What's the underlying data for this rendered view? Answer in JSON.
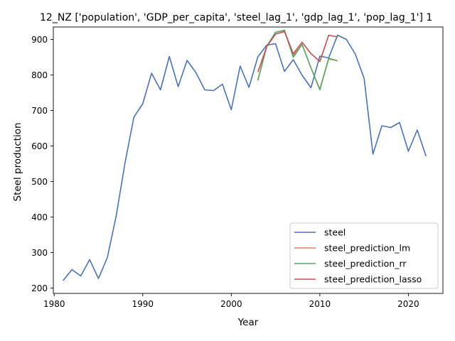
{
  "chart_data": {
    "type": "line",
    "title": "12_NZ ['population', 'GDP_per_capita', 'steel_lag_1', 'gdp_lag_1', 'pop_lag_1'] 1",
    "xlabel": "Year",
    "ylabel": "Steel production",
    "xlim": [
      1979.9,
      2023.9
    ],
    "ylim": [
      185,
      935
    ],
    "xticks": [
      1980,
      1990,
      2000,
      2010,
      2020
    ],
    "yticks": [
      200,
      300,
      400,
      500,
      600,
      700,
      800,
      900
    ],
    "grid": false,
    "legend_position": "lower-right",
    "series": [
      {
        "name": "steel",
        "color": "#4c72b0",
        "x": [
          1981,
          1982,
          1983,
          1984,
          1985,
          1986,
          1987,
          1988,
          1989,
          1990,
          1991,
          1992,
          1993,
          1994,
          1995,
          1996,
          1997,
          1998,
          1999,
          2000,
          2001,
          2002,
          2003,
          2004,
          2005,
          2006,
          2007,
          2008,
          2009,
          2010,
          2011,
          2012,
          2013,
          2014,
          2015,
          2016,
          2017,
          2018,
          2019,
          2020,
          2021,
          2022
        ],
        "values": [
          221,
          252,
          234,
          280,
          227,
          286,
          403,
          553,
          681,
          719,
          805,
          758,
          852,
          767,
          841,
          807,
          758,
          756,
          774,
          702,
          825,
          765,
          851,
          884,
          888,
          810,
          843,
          799,
          764,
          853,
          848,
          912,
          900,
          859,
          790,
          577,
          657,
          652,
          666,
          585,
          645,
          571
        ]
      },
      {
        "name": "steel_prediction_lm",
        "color": "#dd8452",
        "x": [
          2003,
          2004,
          2005,
          2006,
          2007,
          2008,
          2009,
          2010,
          2011,
          2012
        ],
        "values": [
          785,
          880,
          920,
          925,
          855,
          885,
          820,
          760,
          845,
          840
        ]
      },
      {
        "name": "steel_prediction_rr",
        "color": "#55a868",
        "x": [
          2003,
          2004,
          2005,
          2006,
          2007,
          2008,
          2009,
          2010,
          2011,
          2012
        ],
        "values": [
          785,
          881,
          920,
          926,
          850,
          886,
          820,
          758,
          847,
          840
        ]
      },
      {
        "name": "steel_prediction_lasso",
        "color": "#c44e52",
        "x": [
          2003,
          2004,
          2005,
          2006,
          2007,
          2008,
          2009,
          2010,
          2011,
          2012
        ],
        "values": [
          808,
          880,
          915,
          922,
          860,
          892,
          860,
          838,
          912,
          907
        ]
      }
    ]
  }
}
